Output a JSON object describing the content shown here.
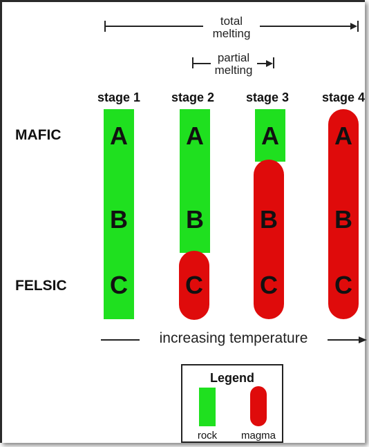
{
  "top": {
    "total_line1": "total",
    "total_line2": "melting",
    "partial_line1": "partial",
    "partial_line2": "melting"
  },
  "stages": [
    {
      "label": "stage 1",
      "segments": [
        {
          "type": "rock",
          "zones": [
            "A",
            "B",
            "C"
          ]
        }
      ]
    },
    {
      "label": "stage 2",
      "segments": [
        {
          "type": "rock",
          "zones": [
            "A",
            "B"
          ]
        },
        {
          "type": "magma",
          "zones": [
            "C"
          ]
        }
      ]
    },
    {
      "label": "stage 3",
      "segments": [
        {
          "type": "rock",
          "zones": [
            "A"
          ]
        },
        {
          "type": "magma",
          "zones": [
            "B",
            "C"
          ]
        }
      ]
    },
    {
      "label": "stage 4",
      "segments": [
        {
          "type": "magma",
          "zones": [
            "A",
            "B",
            "C"
          ]
        }
      ]
    }
  ],
  "zone_letters": {
    "a": "A",
    "b": "B",
    "c": "C"
  },
  "side_labels": {
    "mafic": "MAFIC",
    "felsic": "FELSIC"
  },
  "axis": {
    "label": "increasing temperature"
  },
  "legend": {
    "title": "Legend",
    "rock": "rock",
    "magma": "magma"
  },
  "colors": {
    "rock": "#1fe01f",
    "magma": "#df0b0b",
    "text": "#111111"
  }
}
